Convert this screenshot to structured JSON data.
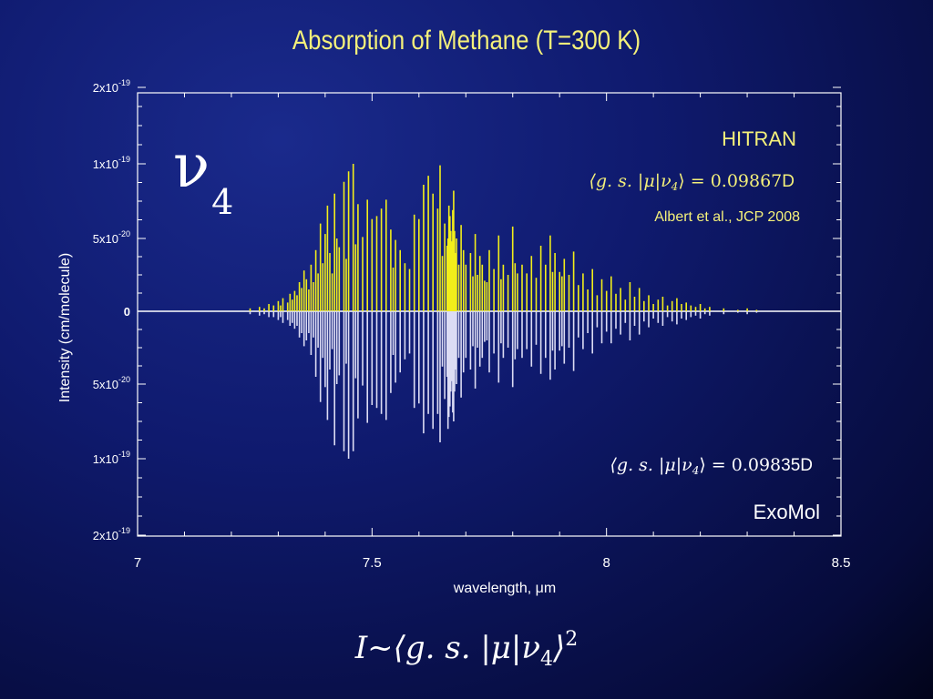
{
  "slide": {
    "title": "Absorption of Methane (T=300 K)",
    "formula": {
      "lhs": "I",
      "tilde": "~",
      "bracket_open": "⟨g. s. |μ|ν",
      "sub": "4",
      "bracket_close": "⟩",
      "power": "2"
    }
  },
  "chart_data": {
    "type": "bar",
    "subtype": "mirrored stick spectrum",
    "title": "Absorption of Methane (T=300 K)",
    "xlabel": "wavelength, μm",
    "ylabel": "Intensity (cm/molecule)",
    "xlim": [
      7,
      8.5
    ],
    "x_ticks": [
      {
        "value": 7,
        "label": "7"
      },
      {
        "value": 7.5,
        "label": "7.5"
      },
      {
        "value": 8,
        "label": "8"
      },
      {
        "value": 8.5,
        "label": "8.5"
      }
    ],
    "y_ticks": [
      {
        "value": 2e-19,
        "label_main": "2x10",
        "label_exp": "-19"
      },
      {
        "value": 1e-19,
        "label_main": "1x10",
        "label_exp": "-19"
      },
      {
        "value": 5e-20,
        "label_main": "5x10",
        "label_exp": "-20"
      },
      {
        "value": 0,
        "label_main": "0",
        "label_exp": ""
      },
      {
        "value": -5e-20,
        "label_main": "5x10",
        "label_exp": "-20"
      },
      {
        "value": -1e-19,
        "label_main": "1x10",
        "label_exp": "-19"
      },
      {
        "value": -2e-19,
        "label_main": "2x10",
        "label_exp": "-19"
      }
    ],
    "band_label": {
      "symbol": "ν",
      "sub": "4"
    },
    "annotations": {
      "hitran_label": "HITRAN",
      "hitran_dipole_expr": "⟨g. s. |μ|ν",
      "hitran_dipole_sub": "4",
      "hitran_dipole_value": "⟩ = 0.09867",
      "hitran_dipole_unit": "D",
      "hitran_reference": "Albert et al., JCP 2008",
      "exomol_dipole_expr": "⟨g. s. |μ|ν",
      "exomol_dipole_sub": "4",
      "exomol_dipole_value": "⟩ = 0.098",
      "exomol_dipole_unit": "35D",
      "exomol_label": "ExoMol"
    },
    "colors": {
      "hitran": "#f2ee1a",
      "exomol": "#dcdcf4",
      "axis": "#ffffff",
      "annotation_yellow": "#f4f07a"
    },
    "series": [
      {
        "name": "HITRAN",
        "direction": "up",
        "x": [
          7.24,
          7.26,
          7.27,
          7.28,
          7.29,
          7.3,
          7.305,
          7.31,
          7.32,
          7.325,
          7.33,
          7.335,
          7.34,
          7.345,
          7.35,
          7.355,
          7.36,
          7.365,
          7.37,
          7.375,
          7.38,
          7.385,
          7.39,
          7.395,
          7.4,
          7.405,
          7.41,
          7.415,
          7.42,
          7.425,
          7.43,
          7.44,
          7.445,
          7.45,
          7.46,
          7.465,
          7.47,
          7.48,
          7.49,
          7.5,
          7.51,
          7.52,
          7.53,
          7.54,
          7.545,
          7.55,
          7.56,
          7.57,
          7.58,
          7.59,
          7.6,
          7.61,
          7.62,
          7.63,
          7.64,
          7.645,
          7.65,
          7.655,
          7.66,
          7.662,
          7.664,
          7.666,
          7.668,
          7.67,
          7.672,
          7.674,
          7.676,
          7.678,
          7.68,
          7.685,
          7.69,
          7.695,
          7.7,
          7.71,
          7.715,
          7.72,
          7.725,
          7.73,
          7.735,
          7.74,
          7.745,
          7.75,
          7.76,
          7.77,
          7.775,
          7.78,
          7.79,
          7.8,
          7.805,
          7.81,
          7.82,
          7.83,
          7.84,
          7.85,
          7.86,
          7.87,
          7.88,
          7.885,
          7.89,
          7.9,
          7.905,
          7.91,
          7.92,
          7.93,
          7.94,
          7.95,
          7.96,
          7.97,
          7.98,
          7.99,
          8.0,
          8.01,
          8.02,
          8.03,
          8.04,
          8.05,
          8.06,
          8.07,
          8.08,
          8.09,
          8.1,
          8.11,
          8.12,
          8.13,
          8.14,
          8.15,
          8.16,
          8.17,
          8.18,
          8.19,
          8.2,
          8.21,
          8.22,
          8.25,
          8.28,
          8.3,
          8.32
        ],
        "y": [
          2e-21,
          3e-21,
          2e-21,
          5e-21,
          4e-21,
          7e-21,
          4e-21,
          9e-21,
          6e-21,
          1.2e-20,
          8e-21,
          1.4e-20,
          1.1e-20,
          2e-20,
          1.6e-20,
          2.8e-20,
          2.2e-20,
          1.5e-20,
          3.2e-20,
          2e-20,
          4.2e-20,
          2.6e-20,
          6e-20,
          3.3e-20,
          5.3e-20,
          7.2e-20,
          4e-20,
          2.6e-20,
          8e-20,
          5e-20,
          4.4e-20,
          8.8e-20,
          3.6e-20,
          9.5e-20,
          1e-19,
          4.6e-20,
          7.3e-20,
          5.1e-20,
          7.6e-20,
          6.3e-20,
          6.5e-20,
          7e-20,
          7.6e-20,
          5.6e-20,
          3e-20,
          4.9e-20,
          4.2e-20,
          3.3e-20,
          2.9e-20,
          6.6e-20,
          6.3e-20,
          8.6e-20,
          9.2e-20,
          8e-20,
          7e-20,
          9.9e-20,
          3.8e-20,
          6e-20,
          4.5e-20,
          5e-20,
          7.2e-20,
          6.5e-20,
          5.5e-20,
          4.8e-20,
          6.9e-20,
          8.2e-20,
          5.5e-20,
          4e-20,
          5e-20,
          3.2e-20,
          5.9e-20,
          4.2e-20,
          3.2e-20,
          4e-20,
          2.4e-20,
          5.3e-20,
          2.5e-20,
          3.8e-20,
          3.2e-20,
          2.1e-20,
          2e-20,
          4.2e-20,
          2.9e-20,
          5.2e-20,
          2.2e-20,
          3.2e-20,
          2.5e-20,
          5.8e-20,
          3.3e-20,
          2.6e-20,
          3.2e-20,
          2.6e-20,
          3.8e-20,
          2.3e-20,
          4.5e-20,
          3.2e-20,
          5.2e-20,
          2.7e-20,
          4e-20,
          2.7e-20,
          2.4e-20,
          3.6e-20,
          2.5e-20,
          4.1e-20,
          1.8e-20,
          2.6e-20,
          1.5e-20,
          2.9e-20,
          1.1e-20,
          2.2e-20,
          1.4e-20,
          2.4e-20,
          1.2e-20,
          1.6e-20,
          8e-21,
          2e-20,
          1e-20,
          1.6e-20,
          7e-21,
          1.1e-20,
          5e-21,
          8e-21,
          1e-20,
          4e-21,
          7e-21,
          9e-21,
          5e-21,
          6e-21,
          4e-21,
          3e-21,
          5e-21,
          2e-21,
          3e-21,
          2e-21,
          1e-21,
          2e-21,
          1e-21
        ]
      },
      {
        "name": "ExoMol",
        "direction": "down",
        "x": [
          7.24,
          7.26,
          7.27,
          7.28,
          7.29,
          7.3,
          7.305,
          7.31,
          7.32,
          7.325,
          7.33,
          7.335,
          7.34,
          7.345,
          7.35,
          7.355,
          7.36,
          7.365,
          7.37,
          7.375,
          7.38,
          7.385,
          7.39,
          7.395,
          7.4,
          7.405,
          7.41,
          7.415,
          7.42,
          7.425,
          7.43,
          7.44,
          7.445,
          7.45,
          7.46,
          7.465,
          7.47,
          7.48,
          7.49,
          7.5,
          7.51,
          7.52,
          7.53,
          7.54,
          7.545,
          7.55,
          7.56,
          7.57,
          7.58,
          7.59,
          7.6,
          7.61,
          7.62,
          7.63,
          7.64,
          7.645,
          7.65,
          7.655,
          7.66,
          7.662,
          7.664,
          7.666,
          7.668,
          7.67,
          7.672,
          7.674,
          7.676,
          7.678,
          7.68,
          7.685,
          7.69,
          7.695,
          7.7,
          7.71,
          7.715,
          7.72,
          7.725,
          7.73,
          7.735,
          7.74,
          7.745,
          7.75,
          7.76,
          7.77,
          7.775,
          7.78,
          7.79,
          7.8,
          7.805,
          7.81,
          7.82,
          7.83,
          7.84,
          7.85,
          7.86,
          7.87,
          7.88,
          7.885,
          7.89,
          7.9,
          7.905,
          7.91,
          7.92,
          7.93,
          7.94,
          7.95,
          7.96,
          7.97,
          7.98,
          7.99,
          8.0,
          8.01,
          8.02,
          8.03,
          8.04,
          8.05,
          8.06,
          8.07,
          8.08,
          8.09,
          8.1,
          8.11,
          8.12,
          8.13,
          8.14,
          8.15,
          8.16,
          8.17,
          8.18,
          8.19,
          8.2,
          8.21,
          8.22,
          8.25,
          8.28,
          8.3,
          8.32
        ],
        "y": [
          2e-21,
          3e-21,
          2e-21,
          4e-21,
          4e-21,
          6e-21,
          4e-21,
          8e-21,
          6e-21,
          1e-20,
          8e-21,
          1.2e-20,
          1e-20,
          1.8e-20,
          1.5e-20,
          2.4e-20,
          2e-20,
          1.5e-20,
          3e-20,
          1.8e-20,
          4.5e-20,
          2.5e-20,
          6.2e-20,
          3.2e-20,
          5.2e-20,
          7.4e-20,
          4e-20,
          2.6e-20,
          9.1e-20,
          5e-20,
          4.4e-20,
          9.5e-20,
          3.6e-20,
          1e-19,
          9.5e-20,
          4.6e-20,
          7.3e-20,
          5.1e-20,
          7.6e-20,
          6.4e-20,
          6.6e-20,
          7e-20,
          7.4e-20,
          5.6e-20,
          3e-20,
          4.9e-20,
          4.2e-20,
          3.3e-20,
          2.9e-20,
          6.6e-20,
          6.3e-20,
          8.3e-20,
          7e-20,
          8e-20,
          7e-20,
          8.9e-20,
          3.8e-20,
          6e-20,
          4.5e-20,
          8e-20,
          7.2e-20,
          6.5e-20,
          5.5e-20,
          4.8e-20,
          6.9e-20,
          7.5e-20,
          5.5e-20,
          4e-20,
          5e-20,
          3.2e-20,
          5.9e-20,
          4.2e-20,
          3.2e-20,
          4e-20,
          2.4e-20,
          5.3e-20,
          2.5e-20,
          3.8e-20,
          3.2e-20,
          2.1e-20,
          2e-20,
          4.2e-20,
          2.9e-20,
          4.9e-20,
          2.2e-20,
          3.2e-20,
          2.5e-20,
          5.2e-20,
          3.3e-20,
          2.6e-20,
          3.2e-20,
          2.6e-20,
          3.8e-20,
          2.3e-20,
          4.3e-20,
          3.2e-20,
          4.7e-20,
          2.7e-20,
          4e-20,
          2.7e-20,
          2.4e-20,
          3.6e-20,
          2.5e-20,
          4.1e-20,
          1.8e-20,
          2.6e-20,
          1.5e-20,
          2.9e-20,
          1.1e-20,
          2.2e-20,
          1.4e-20,
          2.2e-20,
          1.2e-20,
          1.6e-20,
          8e-21,
          2e-20,
          1e-20,
          1.6e-20,
          7e-21,
          1.1e-20,
          5e-21,
          8e-21,
          1e-20,
          4e-21,
          7e-21,
          9e-21,
          5e-21,
          6e-21,
          4e-21,
          3e-21,
          5e-21,
          2e-21,
          3e-21,
          2e-21,
          1e-21,
          2e-21,
          1e-21
        ]
      }
    ]
  }
}
